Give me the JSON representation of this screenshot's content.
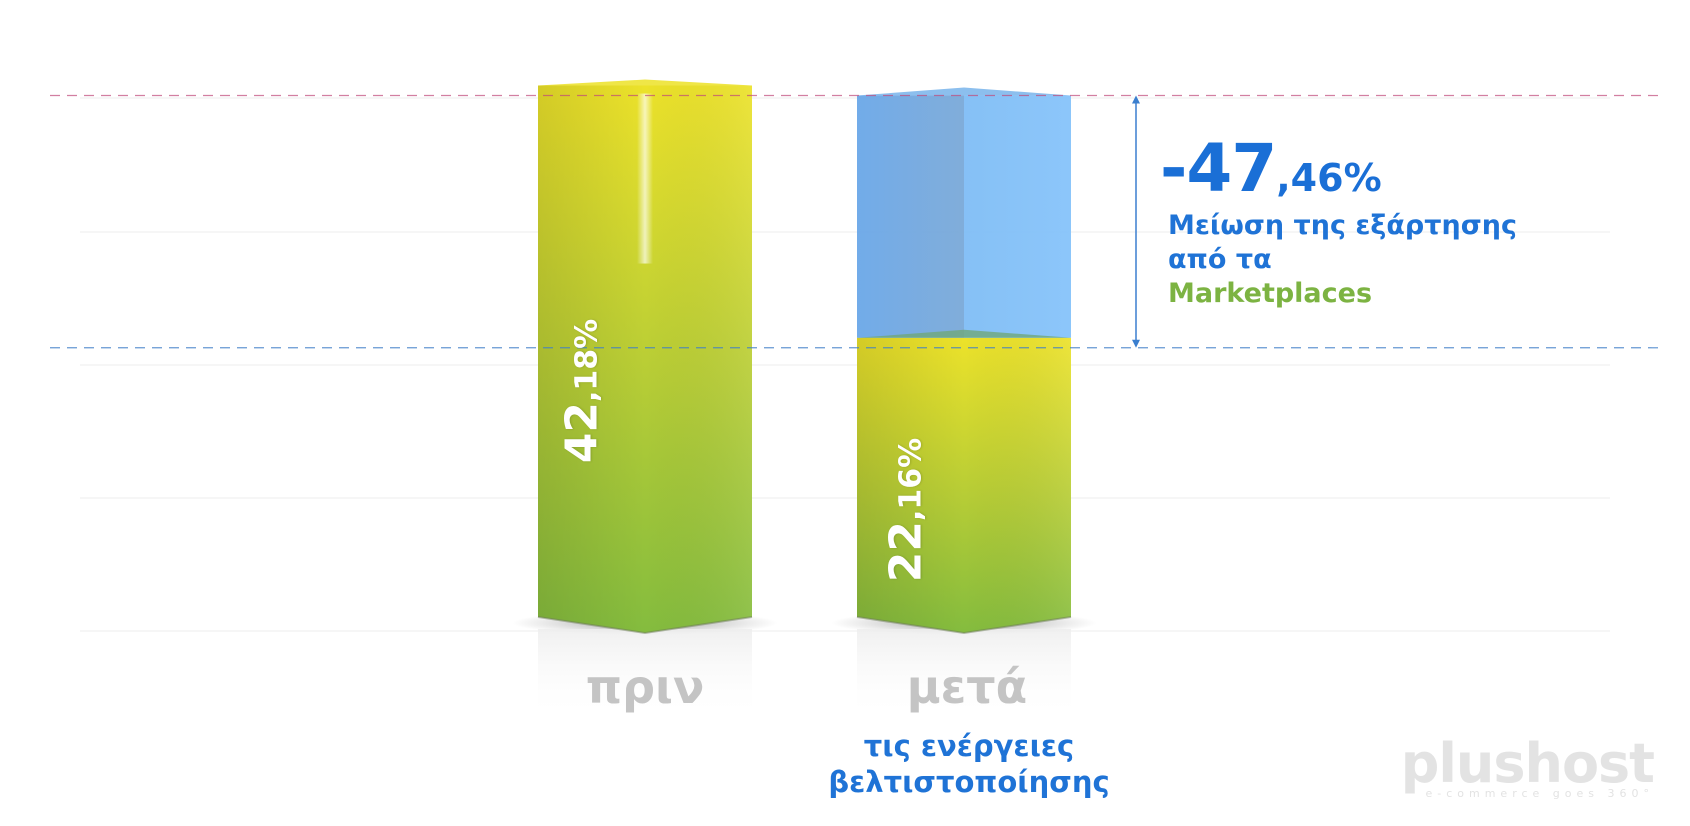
{
  "chart_data": {
    "type": "bar",
    "categories": [
      "πριν",
      "μετά"
    ],
    "values": [
      42.18,
      22.16
    ],
    "value_labels": [
      {
        "int": "42",
        "dec": ",18%"
      },
      {
        "int": "22",
        "dec": ",16%"
      }
    ],
    "category_sublabel": [
      "τις ενέργειες",
      "βελτιστοποίησης"
    ],
    "annotation": {
      "value": -47.46,
      "text_int": "-47",
      "text_dec": ",46%",
      "line1": "Μείωση της εξάρτησης",
      "line2_prefix": "από τα",
      "line2_highlight": "Marketplaces"
    },
    "ylim": [
      0,
      45
    ],
    "grid": true,
    "colors": {
      "bar_top": "#ece22a",
      "bar_bottom": "#84bc3e",
      "reduction": "#7eb6f0",
      "annotation_text": "#1f73d6",
      "highlight": "#7cb342",
      "category_label": "#c4c4c4"
    }
  },
  "logo": {
    "name": "plushost",
    "tagline": "e-commerce goes 360°"
  }
}
